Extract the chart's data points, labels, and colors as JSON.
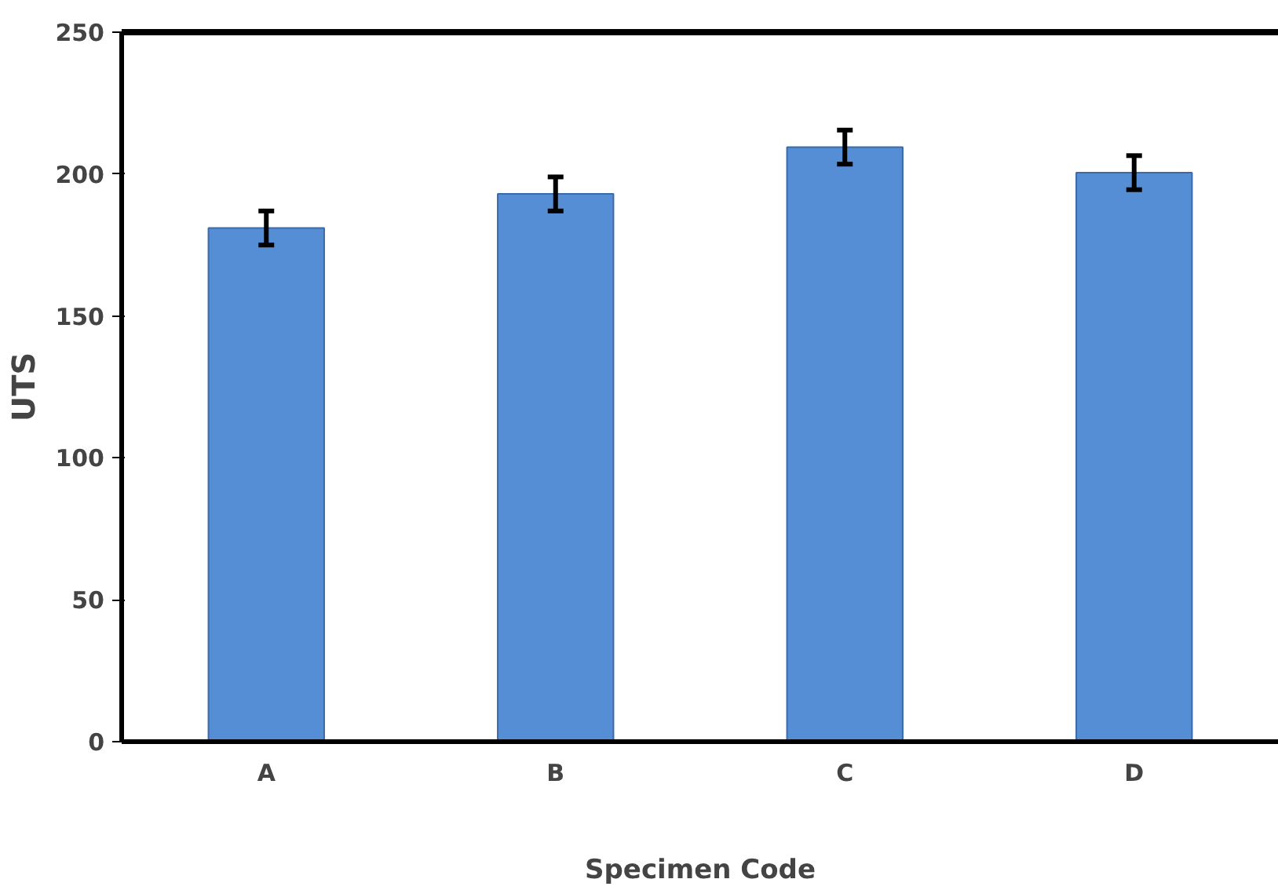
{
  "chart_data": {
    "type": "bar",
    "xlabel": "Specimen Code",
    "ylabel": "UTS",
    "categories": [
      "A",
      "B",
      "C",
      "D"
    ],
    "values": [
      181,
      193,
      209.5,
      200.5
    ],
    "errors": [
      6,
      6,
      6,
      6
    ],
    "color": "#558ed5",
    "ylim": [
      0,
      250
    ],
    "yticks": [
      0,
      50,
      100,
      150,
      200,
      250
    ],
    "grid": false
  }
}
